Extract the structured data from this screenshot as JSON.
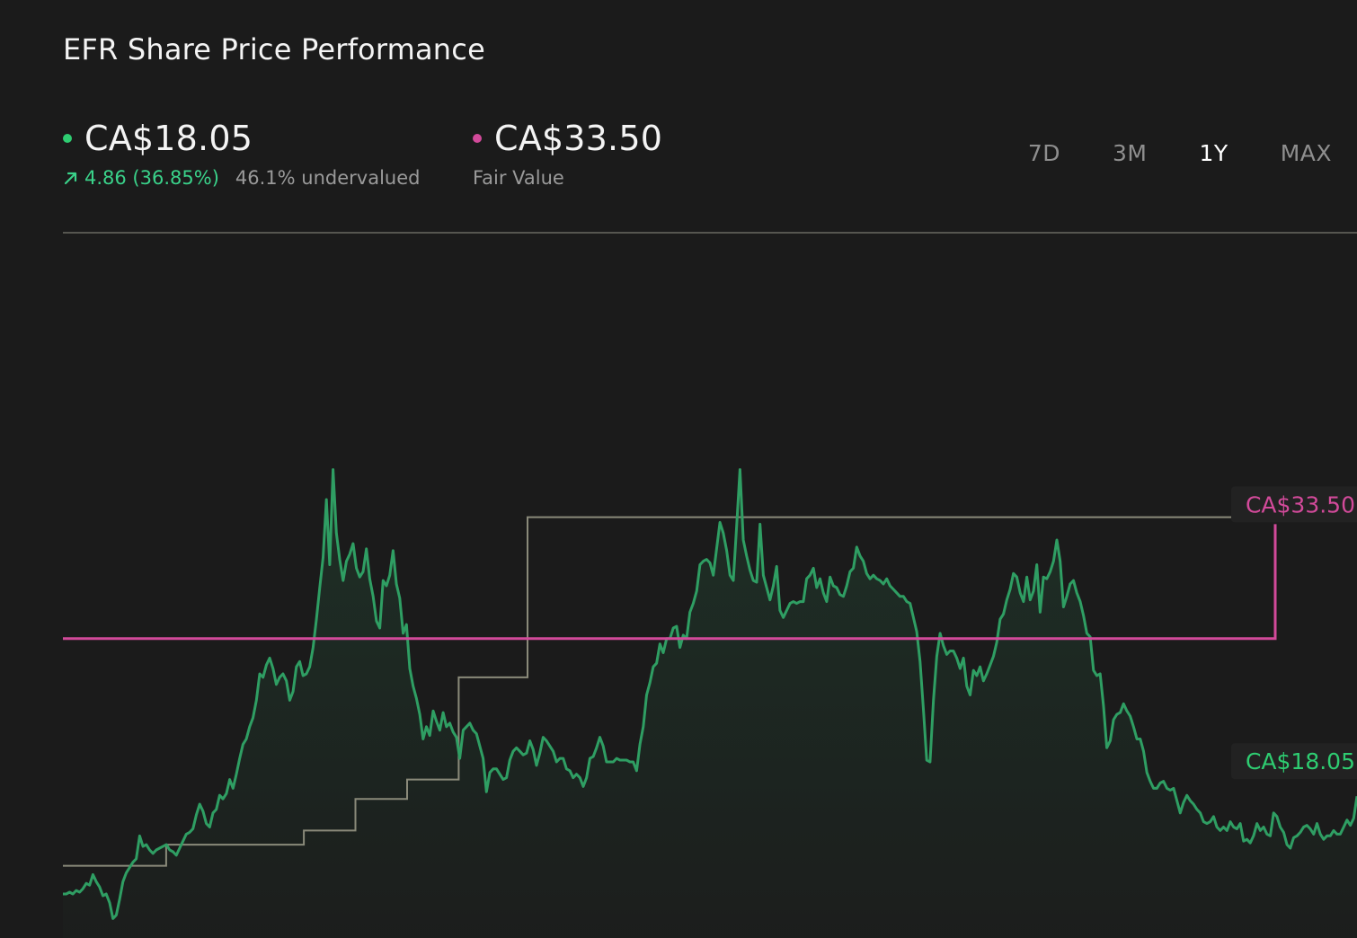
{
  "header": {
    "title": "EFR Share Price Performance"
  },
  "current_price": {
    "value": "CA$18.05",
    "change": "4.86 (36.85%)",
    "valuation": "46.1% undervalued",
    "color": "#2ecc71",
    "icon": "arrow-up-right-icon"
  },
  "fair_value": {
    "value": "CA$33.50",
    "label": "Fair Value",
    "color": "#d24a9a"
  },
  "range_tabs": [
    {
      "label": "7D",
      "active": false
    },
    {
      "label": "3M",
      "active": false
    },
    {
      "label": "1Y",
      "active": true
    },
    {
      "label": "MAX",
      "active": false
    }
  ],
  "chart_data": {
    "type": "line",
    "title": "EFR Share Price Performance",
    "xlabel": "",
    "ylabel": "",
    "ylim": [
      10,
      50
    ],
    "grid": false,
    "series": [
      {
        "key": "price",
        "color": "#2f9e63",
        "values": [
          12.5,
          12.5,
          12.6,
          12.5,
          12.7,
          12.6,
          12.8,
          13.1,
          13.0,
          13.6,
          13.2,
          12.9,
          12.4,
          12.5,
          12.0,
          11.1,
          11.3,
          12.2,
          13.2,
          13.7,
          14.0,
          14.3,
          14.5,
          15.8,
          15.2,
          15.3,
          15.0,
          14.8,
          15.0,
          15.1,
          15.2,
          15.3,
          15.0,
          14.9,
          14.7,
          15.1,
          15.5,
          15.9,
          16.0,
          16.2,
          17.0,
          17.6,
          17.2,
          16.5,
          16.3,
          17.1,
          17.3,
          18.1,
          17.9,
          18.2,
          19.0,
          18.5,
          19.3,
          20.2,
          21.0,
          21.3,
          22.0,
          22.5,
          23.5,
          25.0,
          24.8,
          25.5,
          25.9,
          25.3,
          24.4,
          24.8,
          25.0,
          24.6,
          23.5,
          24.0,
          25.4,
          25.7,
          24.9,
          25.0,
          25.4,
          26.5,
          28.1,
          29.9,
          31.6,
          34.9,
          31.2,
          36.6,
          33.0,
          31.5,
          30.3,
          31.4,
          31.8,
          32.4,
          31.0,
          30.5,
          30.8,
          32.1,
          30.4,
          29.4,
          28.0,
          27.6,
          30.3,
          30.0,
          30.6,
          32.0,
          30.1,
          29.3,
          27.3,
          27.8,
          25.3,
          24.3,
          23.6,
          22.7,
          21.3,
          22.0,
          21.5,
          22.9,
          22.3,
          21.8,
          22.8,
          22.0,
          22.2,
          21.7,
          21.4,
          20.2,
          21.8,
          22.0,
          22.2,
          21.8,
          21.6,
          20.9,
          20.2,
          18.3,
          19.4,
          19.6,
          19.6,
          19.3,
          19.0,
          19.1,
          20.1,
          20.6,
          20.8,
          20.6,
          20.4,
          20.5,
          21.2,
          20.7,
          19.8,
          20.5,
          21.4,
          21.2,
          20.9,
          20.6,
          20.0,
          20.2,
          20.2,
          19.6,
          19.5,
          19.1,
          19.3,
          19.1,
          18.6,
          19.1,
          20.2,
          20.3,
          20.8,
          21.4,
          20.9,
          20.0,
          20.0,
          20.0,
          20.2,
          20.1,
          20.1,
          20.1,
          20.0,
          20.0,
          19.5,
          21.0,
          22.0,
          23.8,
          24.5,
          25.4,
          25.6,
          26.7,
          26.2,
          27.0,
          27.0,
          27.6,
          27.7,
          26.5,
          27.2,
          27.0,
          28.5,
          29.0,
          29.7,
          31.2,
          31.4,
          31.5,
          31.3,
          30.6,
          32.1,
          33.6,
          33.0,
          32.0,
          30.6,
          30.3,
          33.4,
          36.6,
          32.6,
          31.7,
          30.9,
          30.3,
          30.2,
          33.5,
          30.6,
          29.9,
          29.2,
          30.0,
          31.1,
          28.6,
          28.2,
          28.6,
          29.0,
          29.1,
          29.0,
          29.1,
          29.1,
          30.4,
          30.6,
          31.0,
          29.9,
          30.4,
          29.6,
          29.1,
          30.5,
          30.0,
          29.9,
          29.5,
          29.4,
          30.0,
          30.8,
          31.0,
          32.2,
          31.7,
          31.4,
          30.7,
          30.4,
          30.6,
          30.4,
          30.3,
          30.1,
          30.4,
          30.0,
          29.8,
          29.6,
          29.4,
          29.4,
          29.1,
          29.0,
          28.2,
          27.4,
          25.7,
          23.0,
          20.1,
          20.0,
          23.5,
          26.0,
          27.3,
          26.6,
          26.1,
          26.3,
          26.3,
          25.9,
          25.3,
          25.9,
          24.3,
          23.8,
          25.2,
          24.9,
          25.4,
          24.6,
          25.0,
          25.5,
          26.0,
          26.8,
          28.1,
          28.4,
          29.2,
          29.8,
          30.7,
          30.5,
          29.6,
          29.1,
          30.5,
          29.2,
          29.7,
          31.2,
          28.5,
          30.5,
          30.4,
          30.8,
          31.4,
          32.6,
          31.4,
          28.8,
          29.4,
          30.1,
          30.3,
          29.6,
          29.1,
          28.3,
          27.3,
          27.1,
          25.2,
          24.9,
          25.0,
          23.2,
          20.8,
          21.2,
          22.4,
          22.7,
          22.8,
          23.3,
          22.9,
          22.6,
          22.0,
          21.3,
          21.3,
          20.6,
          19.4,
          18.9,
          18.5,
          18.5,
          18.8,
          18.9,
          18.5,
          18.4,
          18.5,
          17.8,
          17.1,
          17.7,
          18.1,
          17.8,
          17.6,
          17.3,
          17.1,
          16.6,
          16.5,
          16.6,
          16.9,
          16.3,
          16.1,
          16.3,
          16.1,
          16.6,
          16.3,
          16.2,
          16.5,
          15.5,
          15.6,
          15.4,
          15.8,
          16.5,
          16.1,
          16.3,
          15.9,
          15.8,
          17.1,
          16.9,
          16.3,
          16.0,
          15.3,
          15.1,
          15.7,
          15.8,
          16.0,
          16.3,
          16.4,
          16.2,
          15.9,
          16.5,
          15.9,
          15.6,
          15.8,
          15.8,
          16.1,
          15.9,
          15.9,
          16.3,
          16.7,
          16.4,
          16.8,
          18.05
        ],
        "area_fill": true
      },
      {
        "key": "fair_value_history",
        "color": "#8a8a7a",
        "step": true,
        "values": [
          14.1,
          14.1,
          14.1,
          14.1,
          14.1,
          14.1,
          14.1,
          14.1,
          14.1,
          14.1,
          14.1,
          14.1,
          14.1,
          14.1,
          14.1,
          14.1,
          14.1,
          14.1,
          14.1,
          14.1,
          14.1,
          14.1,
          14.1,
          14.1,
          14.1,
          14.1,
          14.1,
          14.1,
          14.1,
          14.1,
          15.3,
          15.3,
          15.3,
          15.3,
          15.3,
          15.3,
          15.3,
          15.3,
          15.3,
          15.3,
          15.3,
          15.3,
          15.3,
          15.3,
          15.3,
          15.3,
          15.3,
          15.3,
          15.3,
          15.3,
          15.3,
          15.3,
          15.3,
          15.3,
          15.3,
          15.3,
          15.3,
          15.3,
          15.3,
          15.3,
          15.3,
          15.3,
          15.3,
          15.3,
          15.3,
          15.3,
          15.3,
          15.3,
          15.3,
          15.3,
          16.1,
          16.1,
          16.1,
          16.1,
          16.1,
          16.1,
          16.1,
          16.1,
          16.1,
          16.1,
          16.1,
          16.1,
          16.1,
          16.1,
          16.1,
          17.9,
          17.9,
          17.9,
          17.9,
          17.9,
          17.9,
          17.9,
          17.9,
          17.9,
          17.9,
          17.9,
          17.9,
          17.9,
          17.9,
          17.9,
          19.0,
          19.0,
          19.0,
          19.0,
          19.0,
          19.0,
          19.0,
          19.0,
          19.0,
          19.0,
          19.0,
          19.0,
          19.0,
          19.0,
          19.0,
          24.8,
          24.8,
          24.8,
          24.8,
          24.8,
          24.8,
          24.8,
          24.8,
          24.8,
          24.8,
          24.8,
          24.8,
          24.8,
          24.8,
          24.8,
          24.8,
          24.8,
          24.8,
          24.8,
          24.8,
          33.9,
          33.9,
          33.9,
          33.9,
          33.9,
          33.9,
          33.9,
          33.9,
          33.9,
          33.9,
          33.9,
          33.9,
          33.9,
          33.9,
          33.9,
          33.9,
          33.9,
          33.9,
          33.9,
          33.9,
          33.9,
          33.9,
          33.9,
          33.9,
          33.9,
          33.9,
          33.9,
          33.9,
          33.9,
          33.9,
          33.9,
          33.9,
          33.9,
          33.9,
          33.9,
          33.9,
          33.9,
          33.9,
          33.9,
          33.9,
          33.9,
          33.9,
          33.9,
          33.9,
          33.9,
          33.9,
          33.9,
          33.9,
          33.9,
          33.9,
          33.9,
          33.9,
          33.9,
          33.9,
          33.9,
          33.9,
          33.9,
          33.9,
          33.9,
          33.9,
          33.9,
          33.9,
          33.9,
          33.9,
          33.9,
          33.9,
          33.9,
          33.9,
          33.9,
          33.9,
          33.9,
          33.9,
          33.9,
          33.9,
          33.9,
          33.9,
          33.9,
          33.9,
          33.9,
          33.9,
          33.9,
          33.9,
          33.9,
          33.9,
          33.9,
          33.9,
          33.9,
          33.9,
          33.9,
          33.9,
          33.9,
          33.9,
          33.9,
          33.9,
          33.9,
          33.9,
          33.9,
          33.9,
          33.9,
          33.9,
          33.9,
          33.9,
          33.9,
          33.9,
          33.9,
          33.9,
          33.9,
          33.9,
          33.9,
          33.9,
          33.9,
          33.9,
          33.9,
          33.9,
          33.9,
          33.9,
          33.9,
          33.9,
          33.9,
          33.9,
          33.9,
          33.9,
          33.9,
          33.9,
          33.9,
          33.9,
          33.9,
          33.9,
          33.9,
          33.9,
          33.9,
          33.9,
          33.9,
          33.9,
          33.9,
          33.9,
          33.9,
          33.9,
          33.9,
          33.9,
          33.9,
          33.9,
          33.9,
          33.9,
          33.9,
          33.9,
          33.9,
          33.9,
          33.9,
          33.9,
          33.9,
          33.9,
          33.9,
          33.9,
          33.9,
          33.9,
          33.9,
          33.9,
          33.9,
          33.9,
          33.9,
          33.9,
          33.9,
          33.9,
          33.9,
          33.9,
          33.9,
          33.9,
          33.9,
          33.9,
          33.9,
          33.9,
          33.9,
          33.9,
          33.9,
          33.9,
          33.9,
          33.9,
          33.9,
          33.9,
          33.9,
          33.9,
          33.9,
          33.9,
          33.9,
          33.9,
          33.9,
          33.9,
          33.9,
          33.9,
          33.9,
          33.9,
          33.9,
          33.9,
          33.9,
          33.9,
          33.9,
          33.9,
          33.9,
          33.9,
          33.9,
          33.9,
          33.9,
          33.9,
          33.9,
          33.9,
          33.9,
          33.9,
          33.9,
          33.9,
          33.9,
          33.9,
          33.9,
          33.9,
          33.9,
          33.9,
          33.9,
          33.9,
          33.9,
          33.9,
          33.9,
          33.9,
          33.9,
          33.9,
          33.9,
          33.9,
          33.9,
          33.9,
          33.9,
          33.9,
          33.9,
          33.9,
          33.9,
          33.9,
          33.9,
          33.9,
          33.9,
          33.9,
          33.9,
          33.9,
          33.9,
          33.9
        ]
      },
      {
        "key": "current_fair_value",
        "color": "#d24a9a",
        "value": 33.5,
        "base_level": 27.0
      }
    ],
    "annotations": [
      {
        "text": "CA$33.50",
        "color": "#d24a9a"
      },
      {
        "text": "CA$18.05",
        "color": "#2ecc71"
      }
    ]
  }
}
